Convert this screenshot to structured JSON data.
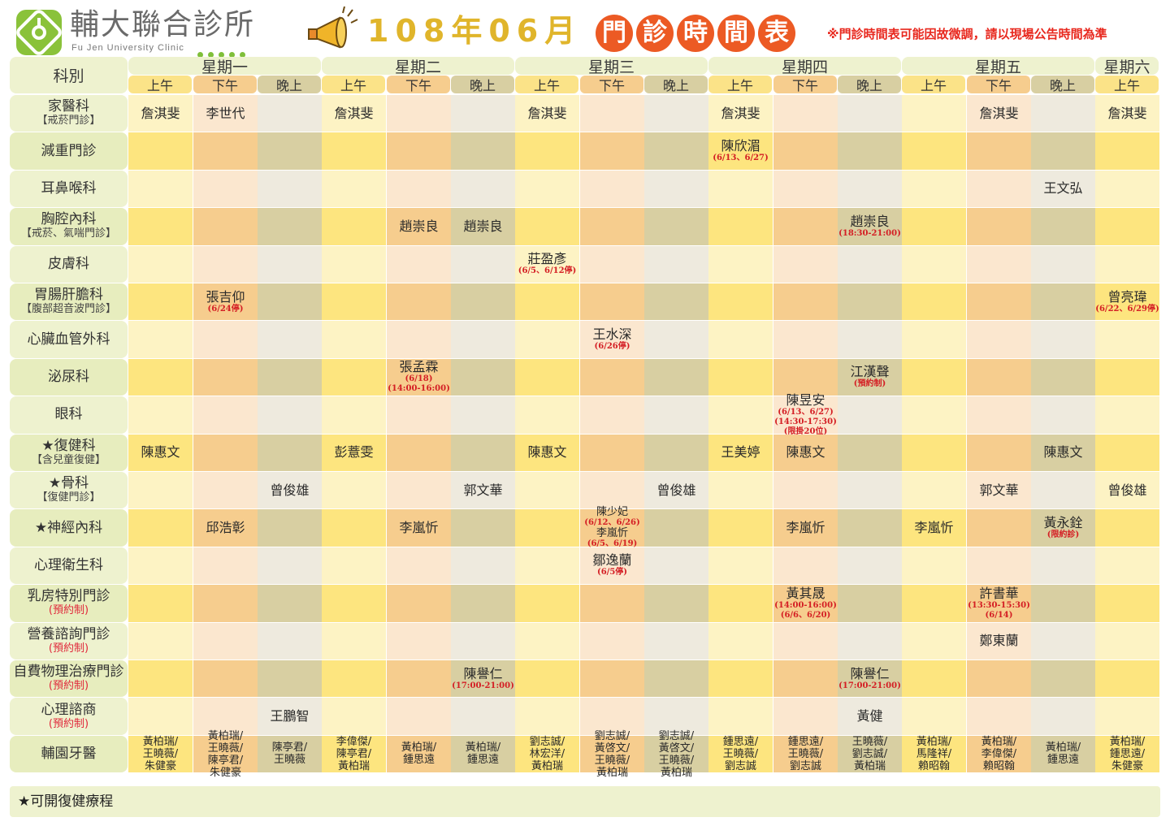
{
  "header": {
    "clinic_name": "輔大聯合診所",
    "clinic_name_en": "Fu Jen University Clinic",
    "title": "108年06月",
    "title_circle_chars": [
      "門",
      "診",
      "時",
      "間",
      "表"
    ],
    "notice": "※門診時間表可能因故微調，請以現場公告時間為準"
  },
  "colors": {
    "am_light": "#fdf3c4",
    "am_dark": "#fde57f",
    "pm_light": "#fbe7cf",
    "pm_dark": "#f6cd8e",
    "ev_light": "#eeeade",
    "ev_dark": "#d8cfa2",
    "header_bg": "#eef2cf",
    "accent_orange": "#ec5a24",
    "note_red": "#d41e24"
  },
  "dept_header": "科別",
  "days": [
    {
      "name": "星期一",
      "slots": [
        "上午",
        "下午",
        "晚上"
      ]
    },
    {
      "name": "星期二",
      "slots": [
        "上午",
        "下午",
        "晚上"
      ]
    },
    {
      "name": "星期三",
      "slots": [
        "上午",
        "下午",
        "晚上"
      ]
    },
    {
      "name": "星期四",
      "slots": [
        "上午",
        "下午",
        "晚上"
      ]
    },
    {
      "name": "星期五",
      "slots": [
        "上午",
        "下午",
        "晚上"
      ]
    },
    {
      "name": "星期六",
      "slots": [
        "上午"
      ]
    }
  ],
  "rows": [
    {
      "dept": "家醫科",
      "sub": "【戒菸門診】",
      "cells": {
        "0": {
          "t": "詹淇斐"
        },
        "1": {
          "t": "李世代"
        },
        "3": {
          "t": "詹淇斐"
        },
        "6": {
          "t": "詹淇斐"
        },
        "9": {
          "t": "詹淇斐"
        },
        "13": {
          "t": "詹淇斐"
        },
        "15": {
          "t": "詹淇斐"
        }
      }
    },
    {
      "dept": "減重門診",
      "cells": {
        "9": {
          "t": "陳欣湄",
          "n": [
            "(6/13、6/27)"
          ]
        }
      }
    },
    {
      "dept": "耳鼻喉科",
      "cells": {
        "14": {
          "t": "王文弘"
        }
      }
    },
    {
      "dept": "胸腔內科",
      "sub": "【戒菸、氣喘門診】",
      "cells": {
        "4": {
          "t": "趙崇良"
        },
        "5": {
          "t": "趙崇良"
        },
        "11": {
          "t": "趙崇良",
          "n": [
            "(18:30-21:00)"
          ]
        }
      }
    },
    {
      "dept": "皮膚科",
      "cells": {
        "6": {
          "t": "莊盈彥",
          "n": [
            "(6/5、6/12停)"
          ]
        }
      }
    },
    {
      "dept": "胃腸肝膽科",
      "sub": "【腹部超音波門診】",
      "cells": {
        "1": {
          "t": "張吉仰",
          "n": [
            "(6/24停)"
          ]
        },
        "15": {
          "t": "曾亮瑋",
          "n": [
            "(6/22、6/29停)"
          ]
        }
      }
    },
    {
      "dept": "心臟血管外科",
      "cells": {
        "7": {
          "t": "王水深",
          "n": [
            "(6/26停)"
          ]
        }
      }
    },
    {
      "dept": "泌尿科",
      "cells": {
        "4": {
          "t": "張孟霖",
          "n": [
            "(6/18)",
            "(14:00-16:00)"
          ]
        },
        "11": {
          "t": "江漢聲",
          "n": [
            "(預約制)"
          ]
        }
      }
    },
    {
      "dept": "眼科",
      "cells": {
        "10": {
          "t": "陳昱安",
          "n": [
            "(6/13、6/27)",
            "(14:30-17:30)",
            "(限掛20位)"
          ]
        }
      }
    },
    {
      "dept": "★復健科",
      "sub": "【含兒童復健】",
      "cells": {
        "0": {
          "t": "陳惠文"
        },
        "3": {
          "t": "彭薏雯"
        },
        "6": {
          "t": "陳惠文"
        },
        "9": {
          "t": "王美婷"
        },
        "10": {
          "t": "陳惠文"
        },
        "14": {
          "t": "陳惠文"
        }
      }
    },
    {
      "dept": "★骨科",
      "sub": "【復健門診】",
      "cells": {
        "2": {
          "t": "曾俊雄"
        },
        "5": {
          "t": "郭文華"
        },
        "8": {
          "t": "曾俊雄"
        },
        "13": {
          "t": "郭文華"
        },
        "15": {
          "t": "曾俊雄"
        }
      }
    },
    {
      "dept": "★神經內科",
      "cells": {
        "1": {
          "t": "邱浩彰"
        },
        "4": {
          "t": "李嵐忻"
        },
        "7": {
          "t": "陳少妃",
          "n": [
            "(6/12、6/26)"
          ],
          "t2": "李嵐忻",
          "n2": [
            "(6/5、6/19)"
          ]
        },
        "10": {
          "t": "李嵐忻"
        },
        "12": {
          "t": "李嵐忻"
        },
        "14": {
          "t": "黃永銓",
          "n": [
            "(限約診)"
          ]
        }
      }
    },
    {
      "dept": "心理衛生科",
      "cells": {
        "7": {
          "t": "鄒逸蘭",
          "n": [
            "(6/5停)"
          ]
        }
      }
    },
    {
      "dept": "乳房特別門診",
      "sub": "(預約制)",
      "subRed": true,
      "cells": {
        "10": {
          "t": "黃其晟",
          "n": [
            "(14:00-16:00)",
            "(6/6、6/20)"
          ]
        },
        "13": {
          "t": "許書華",
          "n": [
            "(13:30-15:30)",
            "(6/14)"
          ]
        }
      }
    },
    {
      "dept": "營養諮詢門診",
      "sub": "(預約制)",
      "subRed": true,
      "cells": {
        "13": {
          "t": "鄭東蘭"
        }
      }
    },
    {
      "dept": "自費物理治療門診",
      "sub": "(預約制)",
      "subRed": true,
      "cells": {
        "5": {
          "t": "陳譽仁",
          "n": [
            "(17:00-21:00)"
          ]
        },
        "11": {
          "t": "陳譽仁",
          "n": [
            "(17:00-21:00)"
          ]
        }
      }
    },
    {
      "dept": "心理諮商",
      "sub": "(預約制)",
      "subRed": true,
      "cells": {
        "2": {
          "t": "王鵬智"
        },
        "11": {
          "t": "黃健"
        }
      }
    },
    {
      "dept": "輔園牙醫",
      "cells": {
        "0": {
          "m": [
            "黃柏瑞/",
            "王曉薇/",
            "朱健豪"
          ]
        },
        "1": {
          "m": [
            "黃柏瑞/",
            "王曉薇/",
            "陳亭君/",
            "朱健豪"
          ]
        },
        "2": {
          "m": [
            "陳亭君/",
            "王曉薇"
          ]
        },
        "3": {
          "m": [
            "李偉傑/",
            "陳亭君/",
            "黃柏瑞"
          ]
        },
        "4": {
          "m": [
            "黃柏瑞/",
            "鍾思遠"
          ]
        },
        "5": {
          "m": [
            "黃柏瑞/",
            "鍾思遠"
          ]
        },
        "6": {
          "m": [
            "劉志誠/",
            "林宏洋/",
            "黃柏瑞"
          ]
        },
        "7": {
          "m": [
            "劉志誠/",
            "黃啓文/",
            "王曉薇/",
            "黃柏瑞"
          ]
        },
        "8": {
          "m": [
            "劉志誠/",
            "黃啓文/",
            "王曉薇/",
            "黃柏瑞"
          ]
        },
        "9": {
          "m": [
            "鍾思遠/",
            "王曉薇/",
            "劉志誠"
          ]
        },
        "10": {
          "m": [
            "鍾思遠/",
            "王曉薇/",
            "劉志誠"
          ]
        },
        "11": {
          "m": [
            "王曉薇/",
            "劉志誠/",
            "黃柏瑞"
          ]
        },
        "12": {
          "m": [
            "黃柏瑞/",
            "馬隆祥/",
            "賴昭翰"
          ]
        },
        "13": {
          "m": [
            "黃柏瑞/",
            "李偉傑/",
            "賴昭翰"
          ]
        },
        "14": {
          "m": [
            "黃柏瑞/",
            "鍾思遠"
          ]
        },
        "15": {
          "m": [
            "黃柏瑞/",
            "鍾思遠/",
            "朱健豪"
          ]
        }
      }
    }
  ],
  "footer": "★可開復健療程"
}
